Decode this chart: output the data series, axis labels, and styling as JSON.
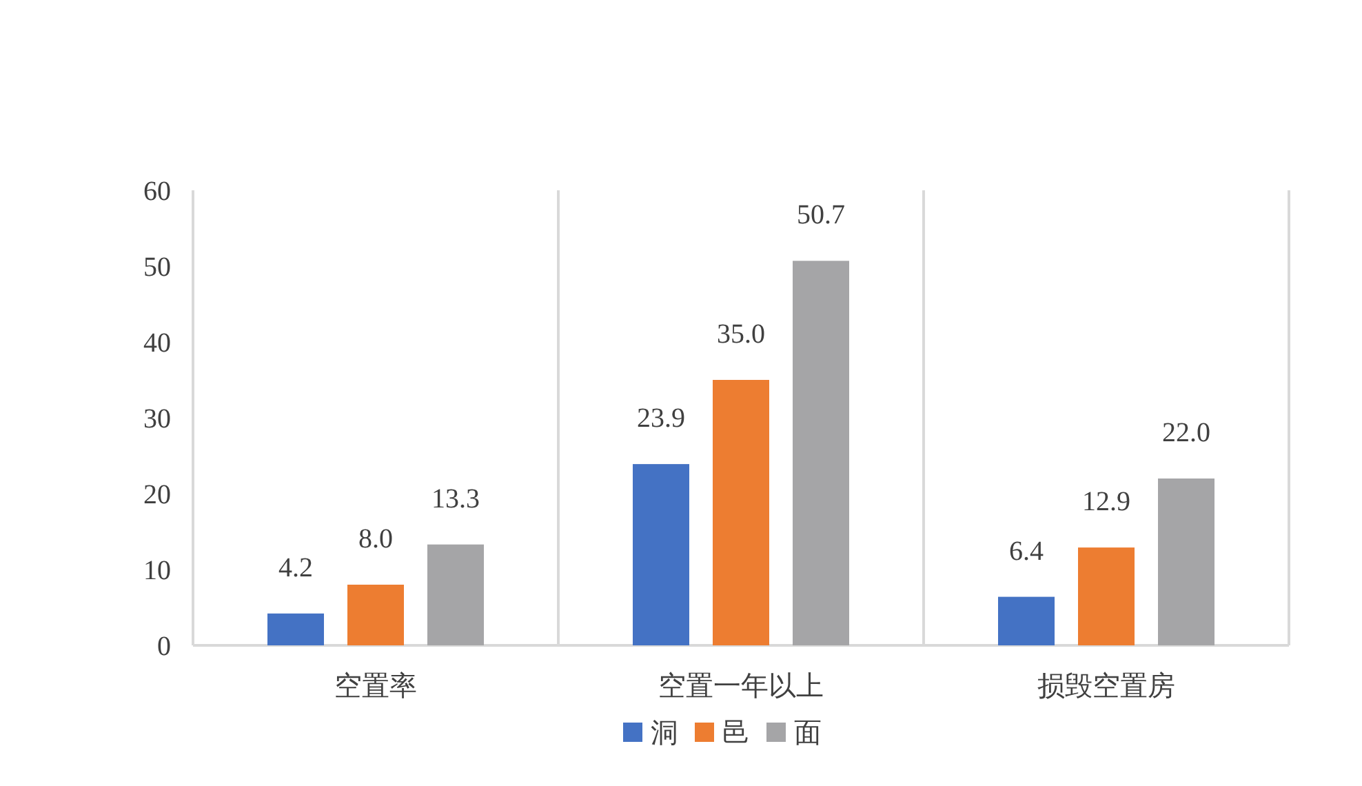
{
  "chart_data": {
    "type": "bar",
    "categories": [
      "空置率",
      "空置一年以上",
      "损毁空置房"
    ],
    "series": [
      {
        "name": "洞",
        "color": "#4472c4",
        "values": [
          4.2,
          23.9,
          6.4
        ]
      },
      {
        "name": "邑",
        "color": "#ed7d31",
        "values": [
          8.0,
          35.0,
          12.9
        ]
      },
      {
        "name": "面",
        "color": "#a5a5a7",
        "values": [
          13.3,
          50.7,
          22.0
        ]
      }
    ],
    "value_labels": [
      [
        "4.2",
        "23.9",
        "6.4"
      ],
      [
        "8.0",
        "35.0",
        "12.9"
      ],
      [
        "13.3",
        "50.7",
        "22.0"
      ]
    ],
    "ylim": [
      0,
      60
    ],
    "yticks": [
      0,
      10,
      20,
      30,
      40,
      50,
      60
    ],
    "grid": "x",
    "legend": "bottom"
  }
}
